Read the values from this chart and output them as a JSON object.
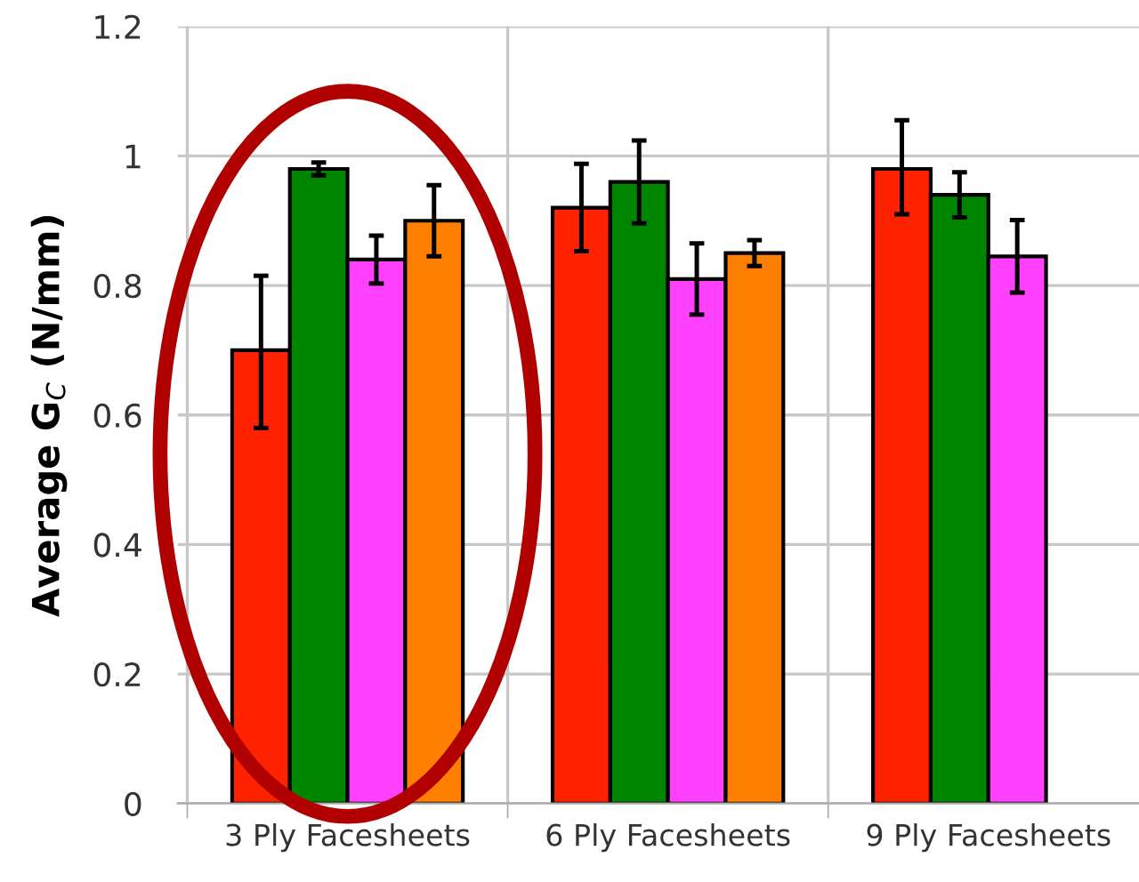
{
  "chart_data": {
    "type": "bar",
    "ylabel": "Average G$_{C}$ (N/mm)",
    "categories": [
      "3 Ply Facesheets",
      "6 Ply Facesheets",
      "9 Ply Facesheets"
    ],
    "series": [
      {
        "color": "#ff2200",
        "values": [
          0.7,
          0.92,
          0.98
        ],
        "errors": [
          [
            0.58,
            0.815
          ],
          [
            0.853,
            0.988
          ],
          [
            0.91,
            1.055
          ]
        ]
      },
      {
        "color": "#008500",
        "values": [
          0.98,
          0.96,
          0.94
        ],
        "errors": [
          0.01,
          0.064,
          0.035
        ]
      },
      {
        "color": "#ff40ff",
        "values": [
          0.84,
          0.81,
          0.845
        ],
        "errors": [
          0.037,
          0.055,
          0.056
        ]
      },
      {
        "color": "#ff7f00",
        "values": [
          0.9,
          0.85,
          null
        ],
        "errors": [
          0.055,
          0.02,
          null
        ]
      }
    ],
    "ylim": [
      0,
      1.2
    ],
    "yticks": [
      0,
      0.2,
      0.4,
      0.6,
      0.8,
      1,
      1.2
    ],
    "grid": true
  }
}
